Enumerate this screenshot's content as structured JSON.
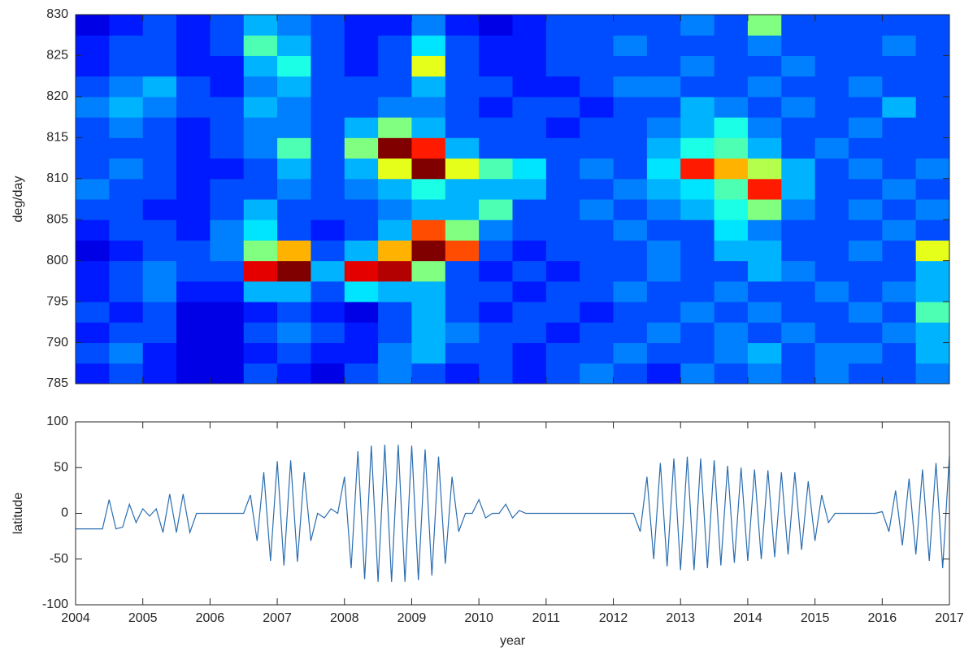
{
  "chart_data": [
    {
      "type": "heatmap",
      "ylabel": "deg/day",
      "xlim": [
        2004,
        2017
      ],
      "ylim": [
        785,
        830
      ],
      "xticks": [
        2004,
        2005,
        2006,
        2007,
        2008,
        2009,
        2010,
        2011,
        2012,
        2013,
        2014,
        2015,
        2016,
        2017
      ],
      "yticks": [
        785,
        790,
        795,
        800,
        805,
        810,
        815,
        820,
        825,
        830
      ],
      "x": [
        2004.25,
        2004.75,
        2005.25,
        2005.75,
        2006.25,
        2006.75,
        2007.25,
        2007.75,
        2008.25,
        2008.75,
        2009.25,
        2009.75,
        2010.25,
        2010.75,
        2011.25,
        2011.75,
        2012.25,
        2012.75,
        2013.25,
        2013.75,
        2014.25,
        2014.75,
        2015.25,
        2015.75,
        2016.25,
        2016.75
      ],
      "y": [
        786.25,
        788.75,
        791.25,
        793.75,
        796.25,
        798.75,
        801.25,
        803.75,
        806.25,
        808.75,
        811.25,
        813.75,
        816.25,
        818.75,
        821.25,
        823.75,
        826.25,
        828.75
      ],
      "z": [
        [
          0.15,
          0.2,
          0.15,
          0.1,
          0.1,
          0.2,
          0.15,
          0.1,
          0.2,
          0.25,
          0.2,
          0.15,
          0.2,
          0.15,
          0.2,
          0.25,
          0.2,
          0.15,
          0.25,
          0.2,
          0.25,
          0.2,
          0.25,
          0.2,
          0.2,
          0.25
        ],
        [
          0.2,
          0.25,
          0.15,
          0.1,
          0.1,
          0.15,
          0.2,
          0.15,
          0.15,
          0.25,
          0.3,
          0.2,
          0.2,
          0.15,
          0.2,
          0.2,
          0.25,
          0.2,
          0.2,
          0.25,
          0.3,
          0.2,
          0.25,
          0.25,
          0.2,
          0.3
        ],
        [
          0.15,
          0.2,
          0.2,
          0.1,
          0.1,
          0.2,
          0.25,
          0.2,
          0.15,
          0.2,
          0.3,
          0.25,
          0.2,
          0.2,
          0.15,
          0.2,
          0.2,
          0.25,
          0.2,
          0.25,
          0.2,
          0.25,
          0.2,
          0.2,
          0.25,
          0.3
        ],
        [
          0.2,
          0.15,
          0.2,
          0.1,
          0.1,
          0.15,
          0.2,
          0.15,
          0.1,
          0.2,
          0.3,
          0.2,
          0.15,
          0.2,
          0.2,
          0.15,
          0.2,
          0.2,
          0.25,
          0.2,
          0.25,
          0.2,
          0.2,
          0.25,
          0.2,
          0.45
        ],
        [
          0.15,
          0.2,
          0.25,
          0.15,
          0.15,
          0.3,
          0.3,
          0.2,
          0.35,
          0.3,
          0.3,
          0.2,
          0.2,
          0.15,
          0.2,
          0.2,
          0.25,
          0.2,
          0.2,
          0.25,
          0.2,
          0.2,
          0.25,
          0.2,
          0.25,
          0.3
        ],
        [
          0.15,
          0.2,
          0.25,
          0.2,
          0.2,
          0.9,
          1,
          0.3,
          0.9,
          0.95,
          0.5,
          0.2,
          0.15,
          0.2,
          0.15,
          0.2,
          0.2,
          0.25,
          0.2,
          0.2,
          0.3,
          0.25,
          0.2,
          0.2,
          0.2,
          0.3
        ],
        [
          0.1,
          0.15,
          0.2,
          0.2,
          0.25,
          0.5,
          0.7,
          0.2,
          0.3,
          0.7,
          1,
          0.8,
          0.2,
          0.15,
          0.2,
          0.2,
          0.2,
          0.25,
          0.2,
          0.3,
          0.3,
          0.2,
          0.2,
          0.25,
          0.2,
          0.6
        ],
        [
          0.15,
          0.2,
          0.2,
          0.15,
          0.25,
          0.35,
          0.2,
          0.15,
          0.2,
          0.3,
          0.8,
          0.5,
          0.25,
          0.2,
          0.2,
          0.2,
          0.25,
          0.2,
          0.2,
          0.35,
          0.25,
          0.2,
          0.2,
          0.2,
          0.25,
          0.2
        ],
        [
          0.2,
          0.2,
          0.15,
          0.15,
          0.2,
          0.3,
          0.2,
          0.2,
          0.2,
          0.25,
          0.3,
          0.3,
          0.45,
          0.2,
          0.2,
          0.25,
          0.2,
          0.25,
          0.3,
          0.4,
          0.5,
          0.25,
          0.2,
          0.25,
          0.2,
          0.25
        ],
        [
          0.25,
          0.2,
          0.2,
          0.15,
          0.2,
          0.2,
          0.25,
          0.2,
          0.25,
          0.3,
          0.4,
          0.3,
          0.3,
          0.3,
          0.2,
          0.2,
          0.25,
          0.3,
          0.35,
          0.45,
          0.85,
          0.3,
          0.2,
          0.2,
          0.25,
          0.2
        ],
        [
          0.2,
          0.25,
          0.2,
          0.15,
          0.15,
          0.2,
          0.3,
          0.2,
          0.3,
          0.6,
          1,
          0.6,
          0.45,
          0.35,
          0.2,
          0.25,
          0.2,
          0.35,
          0.85,
          0.7,
          0.55,
          0.3,
          0.2,
          0.25,
          0.2,
          0.25
        ],
        [
          0.2,
          0.2,
          0.2,
          0.15,
          0.2,
          0.25,
          0.45,
          0.2,
          0.5,
          1,
          0.85,
          0.3,
          0.2,
          0.2,
          0.2,
          0.2,
          0.2,
          0.3,
          0.4,
          0.45,
          0.3,
          0.2,
          0.25,
          0.2,
          0.2,
          0.2
        ],
        [
          0.2,
          0.25,
          0.2,
          0.15,
          0.2,
          0.25,
          0.25,
          0.2,
          0.3,
          0.5,
          0.3,
          0.2,
          0.2,
          0.2,
          0.15,
          0.2,
          0.2,
          0.25,
          0.3,
          0.4,
          0.25,
          0.2,
          0.2,
          0.25,
          0.2,
          0.2
        ],
        [
          0.25,
          0.3,
          0.25,
          0.2,
          0.2,
          0.3,
          0.25,
          0.2,
          0.2,
          0.25,
          0.25,
          0.2,
          0.15,
          0.2,
          0.2,
          0.15,
          0.2,
          0.2,
          0.3,
          0.25,
          0.2,
          0.25,
          0.2,
          0.2,
          0.3,
          0.2
        ],
        [
          0.2,
          0.25,
          0.3,
          0.2,
          0.15,
          0.25,
          0.3,
          0.2,
          0.2,
          0.2,
          0.3,
          0.2,
          0.2,
          0.15,
          0.15,
          0.2,
          0.25,
          0.25,
          0.2,
          0.2,
          0.25,
          0.2,
          0.2,
          0.25,
          0.2,
          0.2
        ],
        [
          0.15,
          0.2,
          0.2,
          0.15,
          0.15,
          0.3,
          0.4,
          0.2,
          0.15,
          0.2,
          0.6,
          0.2,
          0.15,
          0.15,
          0.2,
          0.2,
          0.2,
          0.2,
          0.25,
          0.2,
          0.2,
          0.25,
          0.2,
          0.2,
          0.2,
          0.2
        ],
        [
          0.15,
          0.2,
          0.2,
          0.15,
          0.2,
          0.45,
          0.3,
          0.2,
          0.15,
          0.2,
          0.35,
          0.2,
          0.15,
          0.15,
          0.2,
          0.2,
          0.25,
          0.2,
          0.2,
          0.2,
          0.25,
          0.2,
          0.2,
          0.2,
          0.25,
          0.2
        ],
        [
          0.1,
          0.15,
          0.2,
          0.15,
          0.2,
          0.3,
          0.25,
          0.2,
          0.15,
          0.15,
          0.25,
          0.15,
          0.1,
          0.15,
          0.2,
          0.2,
          0.2,
          0.2,
          0.25,
          0.2,
          0.5,
          0.2,
          0.2,
          0.2,
          0.2,
          0.2
        ]
      ]
    },
    {
      "type": "line",
      "xlabel": "year",
      "ylabel": "latitude",
      "color": "#2a6db0",
      "xlim": [
        2004,
        2017
      ],
      "ylim": [
        -100,
        100
      ],
      "xticks": [
        2004,
        2005,
        2006,
        2007,
        2008,
        2009,
        2010,
        2011,
        2012,
        2013,
        2014,
        2015,
        2016,
        2017
      ],
      "yticks": [
        -100,
        -50,
        0,
        50,
        100
      ],
      "x": [
        2004.0,
        2004.1,
        2004.2,
        2004.3,
        2004.4,
        2004.5,
        2004.6,
        2004.7,
        2004.8,
        2004.9,
        2005.0,
        2005.1,
        2005.2,
        2005.3,
        2005.4,
        2005.5,
        2005.6,
        2005.7,
        2005.8,
        2005.9,
        2006.0,
        2006.1,
        2006.2,
        2006.3,
        2006.4,
        2006.5,
        2006.6,
        2006.7,
        2006.8,
        2006.9,
        2007.0,
        2007.1,
        2007.2,
        2007.3,
        2007.4,
        2007.5,
        2007.6,
        2007.7,
        2007.8,
        2007.9,
        2008.0,
        2008.1,
        2008.2,
        2008.3,
        2008.4,
        2008.5,
        2008.6,
        2008.7,
        2008.8,
        2008.9,
        2009.0,
        2009.1,
        2009.2,
        2009.3,
        2009.4,
        2009.5,
        2009.6,
        2009.7,
        2009.8,
        2009.9,
        2010.0,
        2010.1,
        2010.2,
        2010.3,
        2010.4,
        2010.5,
        2010.6,
        2010.7,
        2010.8,
        2010.9,
        2011.0,
        2011.1,
        2011.2,
        2011.3,
        2011.4,
        2011.5,
        2011.6,
        2011.7,
        2011.8,
        2011.9,
        2012.0,
        2012.1,
        2012.2,
        2012.3,
        2012.4,
        2012.5,
        2012.6,
        2012.7,
        2012.8,
        2012.9,
        2013.0,
        2013.1,
        2013.2,
        2013.3,
        2013.4,
        2013.5,
        2013.6,
        2013.7,
        2013.8,
        2013.9,
        2014.0,
        2014.1,
        2014.2,
        2014.3,
        2014.4,
        2014.5,
        2014.6,
        2014.7,
        2014.8,
        2014.9,
        2015.0,
        2015.1,
        2015.2,
        2015.3,
        2015.4,
        2015.5,
        2015.6,
        2015.7,
        2015.8,
        2015.9,
        2016.0,
        2016.1,
        2016.2,
        2016.3,
        2016.4,
        2016.5,
        2016.6,
        2016.7,
        2016.8,
        2016.9,
        2017.0
      ],
      "values": [
        -17,
        -17,
        -17,
        -17,
        -17,
        15,
        -17,
        -15,
        10,
        -10,
        5,
        -3,
        5,
        -21,
        21,
        -21,
        21,
        -21,
        0,
        0,
        0,
        0,
        0,
        0,
        0,
        0,
        20,
        -30,
        45,
        -52,
        57,
        -57,
        58,
        -53,
        45,
        -30,
        0,
        -5,
        5,
        0,
        40,
        -60,
        68,
        -72,
        74,
        -75,
        75,
        -75,
        75,
        -75,
        74,
        -73,
        70,
        -68,
        62,
        -55,
        40,
        -20,
        0,
        0,
        15,
        -5,
        0,
        0,
        10,
        -5,
        3,
        0,
        0,
        0,
        0,
        0,
        0,
        0,
        0,
        0,
        0,
        0,
        0,
        0,
        0,
        0,
        0,
        0,
        -20,
        40,
        -50,
        55,
        -58,
        60,
        -62,
        62,
        -62,
        60,
        -60,
        58,
        -57,
        52,
        -54,
        50,
        -52,
        48,
        -50,
        47,
        -48,
        45,
        -45,
        45,
        -40,
        35,
        -30,
        20,
        -10,
        0,
        0,
        0,
        0,
        0,
        0,
        0,
        2,
        -20,
        25,
        -35,
        38,
        -45,
        48,
        -52,
        55,
        -60,
        63
      ]
    }
  ]
}
